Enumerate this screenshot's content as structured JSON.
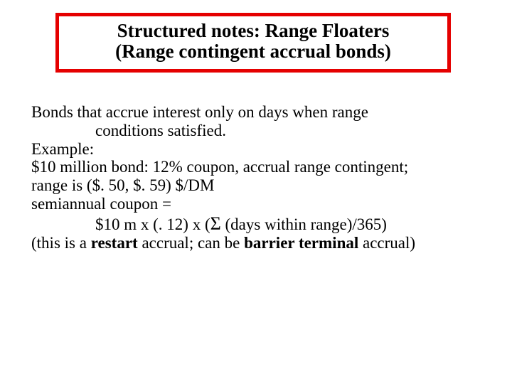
{
  "colors": {
    "background": "#ffffff",
    "text": "#000000",
    "title_border": "#e50000"
  },
  "title": {
    "line1": "Structured notes:  Range Floaters",
    "line2": "(Range contingent accrual bonds)"
  },
  "body": {
    "l1": "Bonds that accrue interest only on days when range",
    "l2": "conditions satisfied.",
    "l3": "Example:",
    "l4": "$10 million bond: 12% coupon, accrual range contingent;",
    "l5": "range is ($. 50, $. 59)  $/DM",
    "l6": "semiannual coupon =",
    "l7_pre": "$10 m x (. 12) x (",
    "l7_sigma": "Σ",
    "l7_post": " (days within range)/365)",
    "l8_a": "(this is a ",
    "l8_b": "restart",
    "l8_c": " accrual; can be ",
    "l8_d": "barrier terminal",
    "l8_e": " accrual)"
  }
}
